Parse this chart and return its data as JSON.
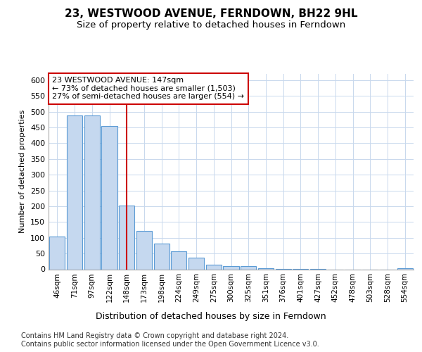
{
  "title": "23, WESTWOOD AVENUE, FERNDOWN, BH22 9HL",
  "subtitle": "Size of property relative to detached houses in Ferndown",
  "xlabel": "Distribution of detached houses by size in Ferndown",
  "ylabel": "Number of detached properties",
  "categories": [
    "46sqm",
    "71sqm",
    "97sqm",
    "122sqm",
    "148sqm",
    "173sqm",
    "198sqm",
    "224sqm",
    "249sqm",
    "275sqm",
    "300sqm",
    "325sqm",
    "351sqm",
    "376sqm",
    "401sqm",
    "427sqm",
    "452sqm",
    "478sqm",
    "503sqm",
    "528sqm",
    "554sqm"
  ],
  "values": [
    105,
    488,
    488,
    455,
    202,
    121,
    82,
    57,
    37,
    15,
    9,
    9,
    3,
    1,
    1,
    1,
    0,
    0,
    0,
    0,
    4
  ],
  "bar_color": "#c5d8ef",
  "bar_edge_color": "#5b9bd5",
  "vline_color": "#cc0000",
  "vline_xindex": 4,
  "annotation_text": "23 WESTWOOD AVENUE: 147sqm\n← 73% of detached houses are smaller (1,503)\n27% of semi-detached houses are larger (554) →",
  "annotation_box_color": "#ffffff",
  "annotation_box_edge": "#cc0000",
  "ylim": [
    0,
    620
  ],
  "yticks": [
    0,
    50,
    100,
    150,
    200,
    250,
    300,
    350,
    400,
    450,
    500,
    550,
    600
  ],
  "background_color": "#ffffff",
  "grid_color": "#c8d8ed",
  "footer_line1": "Contains HM Land Registry data © Crown copyright and database right 2024.",
  "footer_line2": "Contains public sector information licensed under the Open Government Licence v3.0.",
  "title_fontsize": 11,
  "subtitle_fontsize": 9.5,
  "ylabel_fontsize": 8,
  "xlabel_fontsize": 9,
  "annotation_fontsize": 8,
  "xtick_fontsize": 7.5,
  "ytick_fontsize": 8,
  "footer_fontsize": 7
}
